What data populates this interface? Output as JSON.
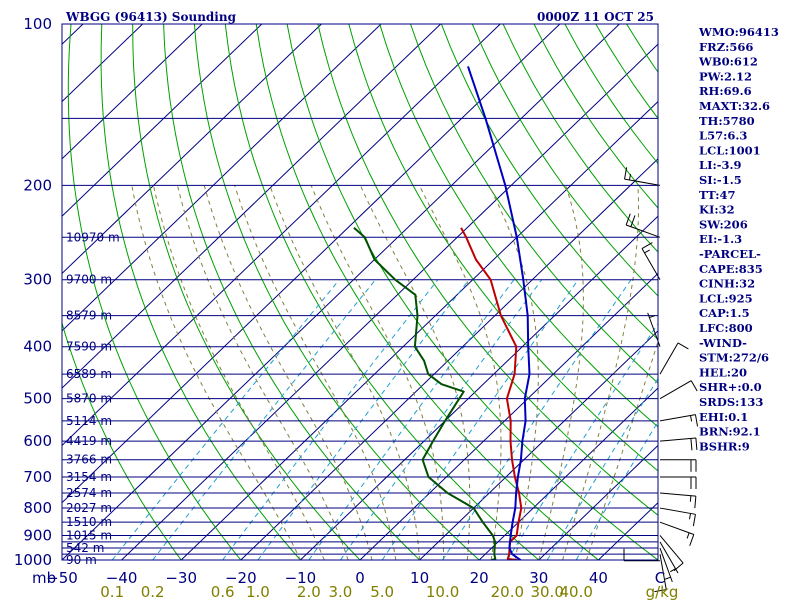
{
  "header": {
    "station": "WBGG (96413) Sounding",
    "time": "0000Z 11 OCT 25"
  },
  "colors": {
    "isobar": "#000080",
    "isotherm": "#000080",
    "dry_adiabat": "#00a000",
    "moist_adiabat": "#808040",
    "mixing_ratio": "#20a0d0",
    "temperature": "#c00000",
    "dewpoint": "#005000",
    "parcel": "#0000c0",
    "wind_barb": "#000000"
  },
  "indices": [
    "WMO:96413",
    "FRZ:566",
    "WB0:612",
    "PW:2.12",
    "RH:69.6",
    "MAXT:32.6",
    "TH:5780",
    "L57:6.3",
    "LCL:1001",
    "LI:-3.9",
    "SI:-1.5",
    "TT:47",
    "KI:32",
    "SW:206",
    "EI:-1.3",
    "-PARCEL-",
    "CAPE:835",
    "CINH:32",
    "LCL:925",
    "CAP:1.5",
    "LFC:800",
    "-WIND-",
    "STM:272/6",
    "HEL:20",
    "SHR+:0.0",
    "SRDS:133",
    "EHI:0.1",
    "BRN:92.1",
    "BSHR:9"
  ],
  "chart_data": {
    "type": "line",
    "subtype": "skew-t log-p sounding",
    "title": "WBGG (96413) Sounding",
    "subtitle": "0000Z 11 OCT 25",
    "ylabel": "mb",
    "xlabel": "",
    "y_scale": "log",
    "ylim": [
      1000,
      100
    ],
    "xlim": [
      -50,
      50
    ],
    "pressure_ticks": [
      100,
      200,
      300,
      400,
      500,
      600,
      700,
      800,
      900,
      1000
    ],
    "temperature_ticks": [
      -50,
      -40,
      -30,
      -20,
      -10,
      0,
      10,
      20,
      30,
      40
    ],
    "x_end_label": "C",
    "isobars": [
      100,
      150,
      200,
      250,
      300,
      350,
      400,
      450,
      500,
      550,
      600,
      650,
      700,
      750,
      800,
      850,
      900,
      925,
      950,
      975,
      1000
    ],
    "mixing_ratio_ticks": [
      "0.1",
      "0.2",
      "0.6",
      "1.0",
      "2.0",
      "3.0",
      "5.0",
      "10.0",
      "20.0",
      "30.0",
      "40.0"
    ],
    "mixing_ratio_unit": "g/kg",
    "height_labels": [
      {
        "p": 250,
        "label": "10970 m"
      },
      {
        "p": 300,
        "label": "9700 m"
      },
      {
        "p": 350,
        "label": "8579 m"
      },
      {
        "p": 400,
        "label": "7590 m"
      },
      {
        "p": 450,
        "label": "6589 m"
      },
      {
        "p": 500,
        "label": "5870 m"
      },
      {
        "p": 550,
        "label": "5114 m"
      },
      {
        "p": 600,
        "label": "4419 m"
      },
      {
        "p": 650,
        "label": "3766 m"
      },
      {
        "p": 700,
        "label": "3154 m"
      },
      {
        "p": 750,
        "label": "2574 m"
      },
      {
        "p": 800,
        "label": "2027 m"
      },
      {
        "p": 850,
        "label": "1510 m"
      },
      {
        "p": 900,
        "label": "1015 m"
      },
      {
        "p": 950,
        "label": "542 m"
      },
      {
        "p": 1000,
        "label": "90 m"
      }
    ],
    "series": [
      {
        "name": "temperature",
        "points": [
          [
            1003,
            27.2
          ],
          [
            995,
            24.6
          ],
          [
            975,
            24.0
          ],
          [
            950,
            23.0
          ],
          [
            925,
            22.0
          ],
          [
            900,
            22.0
          ],
          [
            850,
            20.0
          ],
          [
            800,
            18.0
          ],
          [
            750,
            15.0
          ],
          [
            700,
            11.5
          ],
          [
            650,
            8.0
          ],
          [
            600,
            4.5
          ],
          [
            550,
            1.0
          ],
          [
            500,
            -3.5
          ],
          [
            450,
            -6.5
          ],
          [
            400,
            -11.0
          ],
          [
            350,
            -19.0
          ],
          [
            300,
            -27.0
          ],
          [
            275,
            -33.0
          ],
          [
            250,
            -38.5
          ],
          [
            240,
            -41.0
          ]
        ]
      },
      {
        "name": "dewpoint",
        "points": [
          [
            1003,
            22.0
          ],
          [
            995,
            22.5
          ],
          [
            975,
            21.5
          ],
          [
            950,
            20.5
          ],
          [
            925,
            19.5
          ],
          [
            900,
            18.0
          ],
          [
            850,
            14.0
          ],
          [
            800,
            10.0
          ],
          [
            750,
            3.0
          ],
          [
            700,
            -3.0
          ],
          [
            650,
            -7.0
          ],
          [
            600,
            -8.5
          ],
          [
            550,
            -10.0
          ],
          [
            500,
            -11.5
          ],
          [
            485,
            -12.0
          ],
          [
            470,
            -17.0
          ],
          [
            450,
            -21.0
          ],
          [
            425,
            -24.0
          ],
          [
            400,
            -28.0
          ],
          [
            350,
            -33.0
          ],
          [
            320,
            -37.0
          ],
          [
            300,
            -43.0
          ],
          [
            275,
            -50.0
          ],
          [
            250,
            -55.5
          ],
          [
            240,
            -59.0
          ]
        ]
      },
      {
        "name": "parcel",
        "points": [
          [
            1003,
            27.2
          ],
          [
            975,
            24.5
          ],
          [
            950,
            23.0
          ],
          [
            925,
            22.0
          ],
          [
            900,
            21.0
          ],
          [
            850,
            19.0
          ],
          [
            800,
            17.0
          ],
          [
            750,
            14.5
          ],
          [
            700,
            12.0
          ],
          [
            650,
            9.5
          ],
          [
            600,
            6.5
          ],
          [
            550,
            3.5
          ],
          [
            500,
            -0.5
          ],
          [
            450,
            -4.0
          ],
          [
            400,
            -9.0
          ],
          [
            350,
            -14.5
          ],
          [
            300,
            -21.5
          ],
          [
            250,
            -30.0
          ],
          [
            200,
            -41.0
          ],
          [
            150,
            -56.0
          ],
          [
            120,
            -68.0
          ]
        ]
      }
    ],
    "wind_barbs": [
      {
        "p": 1003,
        "dir": 270,
        "spd": 10
      },
      {
        "p": 975,
        "dir": 170,
        "spd": 10
      },
      {
        "p": 950,
        "dir": 160,
        "spd": 5
      },
      {
        "p": 925,
        "dir": 150,
        "spd": 5
      },
      {
        "p": 900,
        "dir": 140,
        "spd": 10
      },
      {
        "p": 850,
        "dir": 110,
        "spd": 15
      },
      {
        "p": 800,
        "dir": 100,
        "spd": 15
      },
      {
        "p": 750,
        "dir": 95,
        "spd": 15
      },
      {
        "p": 700,
        "dir": 90,
        "spd": 20
      },
      {
        "p": 650,
        "dir": 90,
        "spd": 20
      },
      {
        "p": 600,
        "dir": 85,
        "spd": 20
      },
      {
        "p": 550,
        "dir": 80,
        "spd": 15
      },
      {
        "p": 500,
        "dir": 60,
        "spd": 10
      },
      {
        "p": 450,
        "dir": 30,
        "spd": 10
      },
      {
        "p": 400,
        "dir": 340,
        "spd": 5
      },
      {
        "p": 300,
        "dir": 330,
        "spd": 15
      },
      {
        "p": 250,
        "dir": 290,
        "spd": 20
      },
      {
        "p": 200,
        "dir": 280,
        "spd": 15
      }
    ],
    "grid": true,
    "legend": "none"
  }
}
